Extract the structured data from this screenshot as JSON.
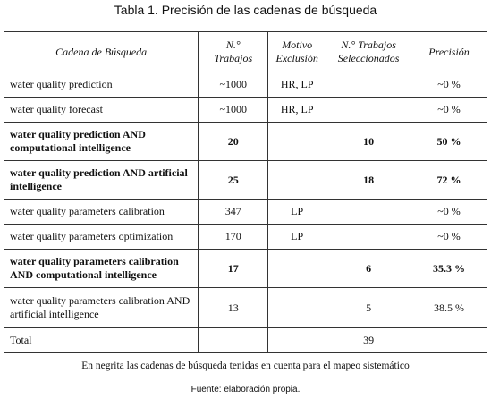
{
  "title": "Tabla 1. Precisión de las cadenas de búsqueda",
  "table": {
    "header": [
      "Cadena de Búsqueda",
      "N.°\nTrabajos",
      "Motivo\nExclusión",
      "N.° Trabajos\nSeleccionados",
      "Precisión"
    ],
    "rows": [
      {
        "cells": [
          "water quality prediction",
          "~1000",
          "HR, LP",
          null,
          "~0 %"
        ],
        "bold": false
      },
      {
        "cells": [
          "water quality forecast",
          "~1000",
          "HR, LP",
          null,
          "~0 %"
        ],
        "bold": false
      },
      {
        "cells": [
          "water quality prediction AND computational intelligence",
          "20",
          null,
          "10",
          "50 %"
        ],
        "bold": true
      },
      {
        "cells": [
          "water quality prediction AND artificial intelligence",
          "25",
          null,
          "18",
          "72 %"
        ],
        "bold": true
      },
      {
        "cells": [
          "water quality parameters calibration",
          "347",
          "LP",
          null,
          "~0 %"
        ],
        "bold": false
      },
      {
        "cells": [
          "water quality parameters optimization",
          "170",
          "LP",
          null,
          "~0 %"
        ],
        "bold": false
      },
      {
        "cells": [
          "water quality parameters calibration AND computational intelligence",
          "17",
          null,
          "6",
          "35.3 %"
        ],
        "bold": true
      },
      {
        "cells": [
          "water quality parameters calibration AND artificial intelligence",
          "13",
          null,
          "5",
          "38.5 %"
        ],
        "bold": false
      },
      {
        "cells": [
          "Total",
          null,
          null,
          "39",
          null
        ],
        "bold": false
      }
    ]
  },
  "note": "En negrita las cadenas de búsqueda tenidas en cuenta para el mapeo sistemático",
  "source": "Fuente: elaboración propia."
}
